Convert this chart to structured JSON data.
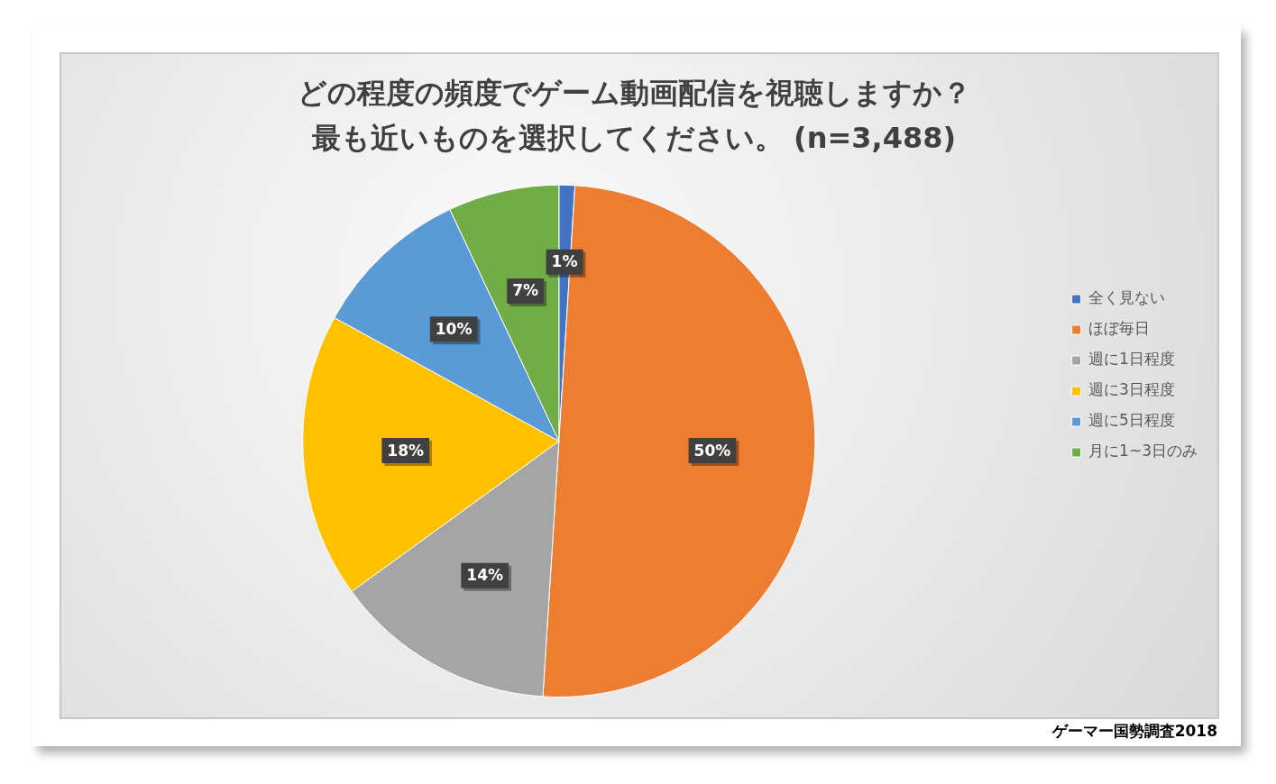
{
  "chart_data": {
    "type": "pie",
    "title": "どの程度の頻度でゲーム動画配信を視聴しますか？",
    "subtitle": "最も近いものを選択してください。 (n=3,488)",
    "categories": [
      "全く見ない",
      "ほぼ毎日",
      "週に1日程度",
      "週に3日程度",
      "週に5日程度",
      "月に1~3日のみ"
    ],
    "values": [
      1,
      50,
      14,
      18,
      10,
      7
    ],
    "colors": [
      "#4472c4",
      "#ed7d31",
      "#a5a5a5",
      "#ffc000",
      "#5b9bd5",
      "#70ad47"
    ],
    "value_labels": [
      "1%",
      "50%",
      "14%",
      "18%",
      "10%",
      "7%"
    ],
    "legend": "right",
    "annotations": [
      "ゲーマー国勢調査2018"
    ]
  }
}
